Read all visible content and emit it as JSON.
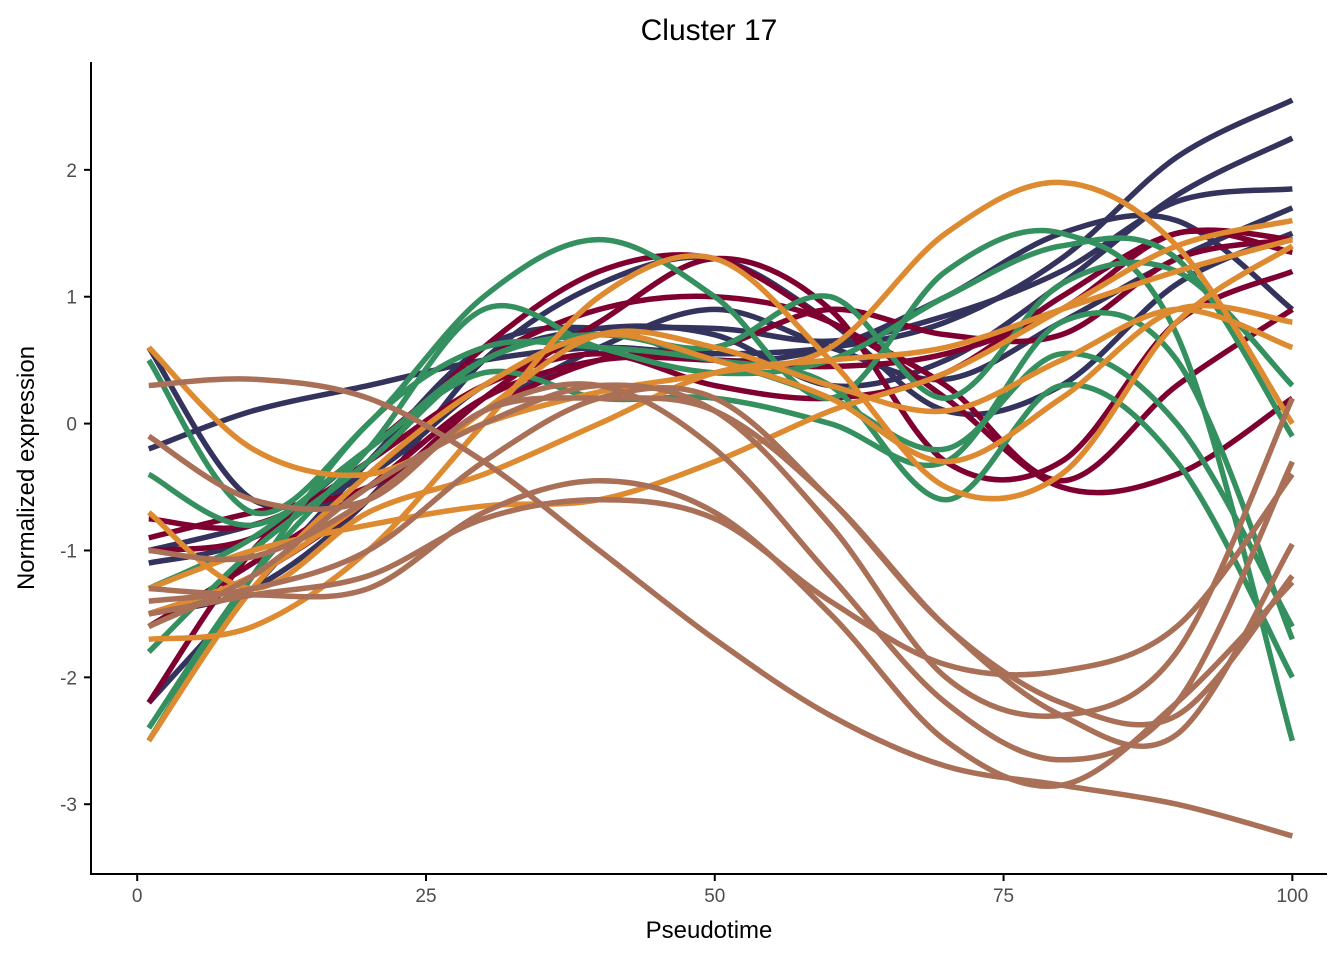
{
  "chart_data": {
    "type": "line",
    "title": "Cluster 17",
    "xlabel": "Pseudotime",
    "ylabel": "Normalized expression",
    "xlim": [
      -4,
      103
    ],
    "ylim": [
      -3.55,
      2.85
    ],
    "x_ticks": [
      0,
      25,
      50,
      75,
      100
    ],
    "x_tick_labels": [
      "0",
      "25",
      "50",
      "75",
      "100"
    ],
    "y_ticks": [
      -3,
      -2,
      -1,
      0,
      1,
      2
    ],
    "y_tick_labels": [
      "-3",
      "-2",
      "-1",
      "0",
      "1",
      "2"
    ],
    "grid": false,
    "legend": "none",
    "colors": {
      "navy": "#33335e",
      "crimson": "#7f0030",
      "green": "#359060",
      "orange": "#dd8a30",
      "brown": "#a97057"
    },
    "series": [
      {
        "color": "#33335e",
        "x": [
          1,
          10,
          20,
          30,
          40,
          50,
          60,
          70,
          80,
          90,
          100
        ],
        "y": [
          0.6,
          -0.6,
          -0.4,
          0.3,
          0.7,
          0.75,
          0.65,
          0.85,
          1.2,
          1.75,
          1.85
        ]
      },
      {
        "color": "#33335e",
        "x": [
          1,
          10,
          20,
          30,
          40,
          50,
          60,
          70,
          80,
          90,
          100
        ],
        "y": [
          -0.2,
          0.1,
          0.3,
          0.5,
          0.6,
          0.55,
          0.6,
          0.8,
          1.3,
          2.1,
          2.55
        ]
      },
      {
        "color": "#33335e",
        "x": [
          1,
          10,
          20,
          30,
          40,
          50,
          60,
          70,
          80,
          90,
          100
        ],
        "y": [
          -1.1,
          -0.9,
          -0.2,
          0.5,
          0.75,
          0.7,
          0.3,
          0.5,
          1.1,
          1.8,
          2.25
        ]
      },
      {
        "color": "#33335e",
        "x": [
          1,
          10,
          20,
          30,
          40,
          50,
          60,
          70,
          80,
          90,
          100
        ],
        "y": [
          -2.2,
          -1.3,
          -0.3,
          0.6,
          0.75,
          0.5,
          0.6,
          1.0,
          1.5,
          1.6,
          0.9
        ]
      },
      {
        "color": "#33335e",
        "x": [
          1,
          10,
          20,
          30,
          40,
          50,
          60,
          70,
          80,
          90,
          100
        ],
        "y": [
          -1.0,
          -0.8,
          -0.5,
          0.1,
          0.6,
          0.9,
          0.6,
          0.35,
          0.8,
          1.3,
          1.7
        ]
      },
      {
        "color": "#33335e",
        "x": [
          1,
          10,
          20,
          30,
          40,
          50,
          60,
          70,
          80,
          90,
          100
        ],
        "y": [
          -1.5,
          -1.3,
          -0.6,
          0.5,
          1.1,
          1.3,
          0.8,
          0.1,
          0.3,
          1.1,
          1.5
        ]
      },
      {
        "color": "#7f0030",
        "x": [
          1,
          10,
          20,
          30,
          40,
          50,
          60,
          70,
          80,
          90,
          100
        ],
        "y": [
          -0.75,
          -0.8,
          -0.3,
          0.6,
          1.2,
          1.3,
          0.8,
          0.3,
          -0.45,
          0.3,
          0.9
        ]
      },
      {
        "color": "#7f0030",
        "x": [
          1,
          10,
          20,
          30,
          40,
          50,
          60,
          70,
          80,
          90,
          100
        ],
        "y": [
          -2.2,
          -1.0,
          -0.2,
          0.5,
          0.9,
          1.0,
          0.8,
          0.2,
          -0.5,
          -0.4,
          0.2
        ]
      },
      {
        "color": "#7f0030",
        "x": [
          1,
          10,
          20,
          30,
          40,
          50,
          60,
          70,
          80,
          90,
          100
        ],
        "y": [
          -0.9,
          -0.7,
          -0.5,
          0.1,
          0.5,
          0.6,
          0.9,
          0.7,
          0.7,
          1.3,
          1.45
        ]
      },
      {
        "color": "#7f0030",
        "x": [
          1,
          10,
          20,
          30,
          40,
          50,
          60,
          70,
          80,
          90,
          100
        ],
        "y": [
          -1.6,
          -1.1,
          -0.5,
          0.2,
          0.5,
          0.5,
          0.45,
          0.55,
          0.9,
          1.5,
          1.35
        ]
      },
      {
        "color": "#7f0030",
        "x": [
          1,
          10,
          20,
          30,
          40,
          50,
          60,
          70,
          80,
          90,
          100
        ],
        "y": [
          -1.5,
          -1.2,
          -0.6,
          0.2,
          0.8,
          1.3,
          0.9,
          -0.3,
          -0.3,
          0.8,
          1.2
        ]
      },
      {
        "color": "#7f0030",
        "x": [
          1,
          10,
          20,
          30,
          40,
          50,
          60,
          70,
          80,
          90,
          100
        ],
        "y": [
          -1.0,
          -0.9,
          -0.3,
          0.3,
          0.55,
          0.3,
          0.2,
          0.4,
          1.0,
          1.5,
          1.45
        ]
      },
      {
        "color": "#359060",
        "x": [
          1,
          10,
          20,
          30,
          40,
          50,
          60,
          70,
          80,
          90,
          100
        ],
        "y": [
          0.5,
          -0.7,
          0.0,
          1.0,
          1.45,
          1.0,
          0.2,
          1.2,
          1.5,
          0.7,
          -2.5
        ]
      },
      {
        "color": "#359060",
        "x": [
          1,
          10,
          20,
          30,
          40,
          50,
          60,
          70,
          80,
          90,
          100
        ],
        "y": [
          -0.4,
          -0.8,
          -0.2,
          0.5,
          0.7,
          0.5,
          0.2,
          -0.2,
          0.55,
          0.0,
          -1.6
        ]
      },
      {
        "color": "#359060",
        "x": [
          1,
          10,
          20,
          30,
          40,
          50,
          60,
          70,
          80,
          90,
          100
        ],
        "y": [
          -2.5,
          -1.2,
          0.0,
          0.6,
          0.6,
          0.5,
          0.3,
          -0.6,
          0.3,
          -0.3,
          -2.0
        ]
      },
      {
        "color": "#359060",
        "x": [
          1,
          10,
          20,
          30,
          40,
          50,
          60,
          70,
          80,
          90,
          100
        ],
        "y": [
          -1.8,
          -1.0,
          -0.3,
          0.5,
          0.7,
          0.6,
          1.0,
          0.2,
          1.1,
          1.2,
          0.3
        ]
      },
      {
        "color": "#359060",
        "x": [
          1,
          10,
          20,
          30,
          40,
          50,
          60,
          70,
          80,
          90,
          100
        ],
        "y": [
          -1.3,
          -0.9,
          -0.2,
          0.4,
          0.2,
          0.2,
          0.0,
          -0.3,
          0.8,
          0.5,
          -1.7
        ]
      },
      {
        "color": "#359060",
        "x": [
          1,
          10,
          20,
          30,
          40,
          50,
          60,
          70,
          80,
          90,
          100
        ],
        "y": [
          -2.4,
          -1.2,
          -0.2,
          0.9,
          0.6,
          0.4,
          0.5,
          1.0,
          1.4,
          1.3,
          -0.1
        ]
      },
      {
        "color": "#dd8a30",
        "x": [
          1,
          10,
          20,
          30,
          40,
          50,
          60,
          70,
          80,
          90,
          100
        ],
        "y": [
          0.6,
          -0.2,
          -0.4,
          0.0,
          0.25,
          0.4,
          0.6,
          1.5,
          1.9,
          1.4,
          0.0
        ]
      },
      {
        "color": "#dd8a30",
        "x": [
          1,
          10,
          20,
          30,
          40,
          50,
          60,
          70,
          80,
          90,
          100
        ],
        "y": [
          -0.7,
          -1.3,
          -0.7,
          -0.4,
          0.0,
          0.4,
          0.5,
          0.6,
          0.9,
          1.2,
          1.45
        ]
      },
      {
        "color": "#dd8a30",
        "x": [
          1,
          10,
          20,
          30,
          40,
          50,
          60,
          70,
          80,
          90,
          100
        ],
        "y": [
          -1.3,
          -1.0,
          -0.8,
          -0.65,
          -0.6,
          -0.3,
          0.1,
          0.4,
          0.9,
          1.4,
          1.6
        ]
      },
      {
        "color": "#dd8a30",
        "x": [
          1,
          10,
          20,
          30,
          40,
          50,
          60,
          70,
          80,
          90,
          100
        ],
        "y": [
          -1.7,
          -1.6,
          -1.0,
          0.0,
          1.0,
          1.3,
          0.5,
          -0.5,
          -0.4,
          0.8,
          1.4
        ]
      },
      {
        "color": "#dd8a30",
        "x": [
          1,
          10,
          20,
          30,
          40,
          50,
          60,
          70,
          80,
          90,
          100
        ],
        "y": [
          -2.5,
          -1.3,
          -0.4,
          0.3,
          0.7,
          0.5,
          0.2,
          -0.3,
          0.2,
          0.9,
          0.8
        ]
      },
      {
        "color": "#dd8a30",
        "x": [
          1,
          10,
          20,
          30,
          40,
          50,
          60,
          70,
          80,
          90,
          100
        ],
        "y": [
          -1.5,
          -1.2,
          -0.6,
          0.1,
          0.7,
          0.6,
          0.3,
          0.1,
          0.5,
          0.9,
          0.6
        ]
      },
      {
        "color": "#a97057",
        "x": [
          1,
          10,
          20,
          30,
          40,
          50,
          60,
          70,
          80,
          90,
          100
        ],
        "y": [
          0.3,
          0.35,
          0.2,
          -0.3,
          -1.0,
          -1.7,
          -2.3,
          -2.7,
          -2.85,
          -3.0,
          -3.25
        ]
      },
      {
        "color": "#a97057",
        "x": [
          1,
          10,
          20,
          30,
          40,
          50,
          60,
          70,
          80,
          90,
          100
        ],
        "y": [
          -1.0,
          -1.05,
          -0.6,
          0.1,
          0.3,
          -0.2,
          -1.2,
          -2.2,
          -2.65,
          -2.2,
          -0.3
        ]
      },
      {
        "color": "#a97057",
        "x": [
          1,
          10,
          20,
          30,
          40,
          50,
          60,
          70,
          80,
          90,
          100
        ],
        "y": [
          -1.6,
          -1.2,
          -0.5,
          0.0,
          0.3,
          0.1,
          -0.8,
          -2.0,
          -2.3,
          -1.8,
          0.2
        ]
      },
      {
        "color": "#a97057",
        "x": [
          1,
          10,
          20,
          30,
          40,
          50,
          60,
          70,
          80,
          90,
          100
        ],
        "y": [
          -1.3,
          -1.35,
          -1.3,
          -0.7,
          -0.45,
          -0.7,
          -1.5,
          -2.5,
          -2.85,
          -2.2,
          -1.25
        ]
      },
      {
        "color": "#a97057",
        "x": [
          1,
          10,
          20,
          30,
          40,
          50,
          60,
          70,
          80,
          90,
          100
        ],
        "y": [
          -1.5,
          -1.35,
          -1.2,
          -0.75,
          -0.6,
          -0.75,
          -1.4,
          -1.9,
          -1.95,
          -1.6,
          -0.4
        ]
      },
      {
        "color": "#a97057",
        "x": [
          1,
          10,
          20,
          30,
          40,
          50,
          60,
          70,
          80,
          90,
          100
        ],
        "y": [
          -0.1,
          -0.6,
          -0.6,
          0.1,
          0.2,
          0.1,
          -0.6,
          -1.6,
          -2.3,
          -2.45,
          -0.95
        ]
      },
      {
        "color": "#a97057",
        "x": [
          1,
          10,
          20,
          30,
          40,
          50,
          60,
          70,
          80,
          90,
          100
        ],
        "y": [
          -1.4,
          -1.3,
          -1.0,
          -0.3,
          0.2,
          0.2,
          -0.6,
          -1.6,
          -2.2,
          -2.3,
          -1.2
        ]
      }
    ]
  }
}
